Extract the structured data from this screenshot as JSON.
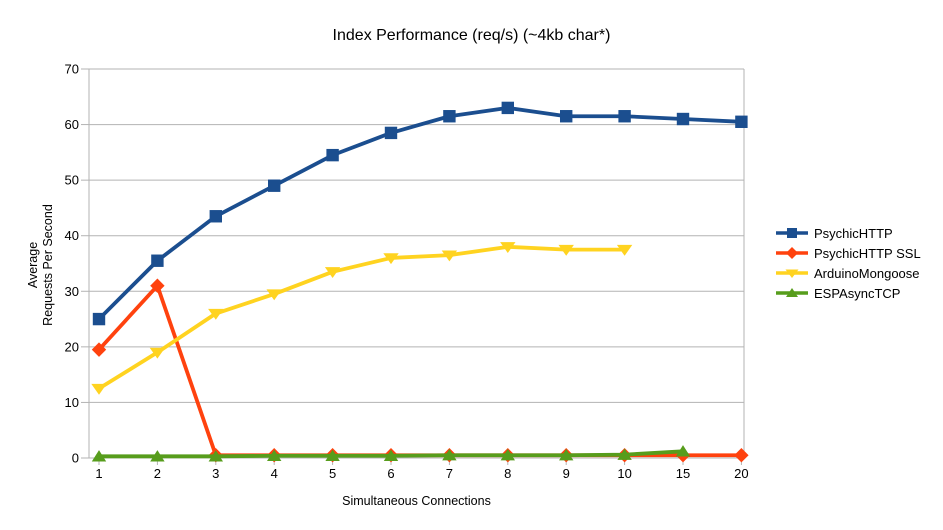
{
  "title": "Index Performance (req/s) (~4kb char*)",
  "chart_data": {
    "type": "line",
    "title": "Index Performance (req/s) (~4kb char*)",
    "xlabel": "Simultaneous Connections",
    "ylabel": "Average Requests Per Second",
    "ylabel_lines": [
      "Average",
      "Requests Per Second"
    ],
    "categories": [
      "1",
      "2",
      "3",
      "4",
      "5",
      "6",
      "7",
      "8",
      "9",
      "10",
      "15",
      "20"
    ],
    "ylim": [
      0,
      70
    ],
    "yticks": [
      0,
      10,
      20,
      30,
      40,
      50,
      60,
      70
    ],
    "grid": "horizontal",
    "legend_position": "right",
    "series": [
      {
        "name": "PsychicHTTP",
        "color": "#1B4E8F",
        "marker": "square",
        "values": [
          25,
          35.5,
          43.5,
          49,
          54.5,
          58.5,
          61.5,
          63,
          61.5,
          61.5,
          61,
          60.5
        ]
      },
      {
        "name": "PsychicHTTP SSL",
        "color": "#FF420E",
        "marker": "diamond",
        "values": [
          19.5,
          31,
          0.5,
          0.5,
          0.5,
          0.5,
          0.5,
          0.5,
          0.5,
          0.5,
          0.5,
          0.5
        ]
      },
      {
        "name": "ArduinoMongoose",
        "color": "#FFD320",
        "marker": "triangle-down",
        "values": [
          12.5,
          19,
          26,
          29.5,
          33.5,
          36,
          36.5,
          38,
          37.5,
          37.5,
          null,
          null
        ]
      },
      {
        "name": "ESPAsyncTCP",
        "color": "#579D1C",
        "marker": "triangle-up",
        "values": [
          0.3,
          0.3,
          0.3,
          0.4,
          0.4,
          0.4,
          0.5,
          0.5,
          0.5,
          0.6,
          1.2,
          null
        ]
      }
    ]
  },
  "colors": {
    "grid": "#B3B3B3",
    "axis": "#B3B3B3",
    "text": "#000000",
    "background": "#FFFFFF"
  }
}
